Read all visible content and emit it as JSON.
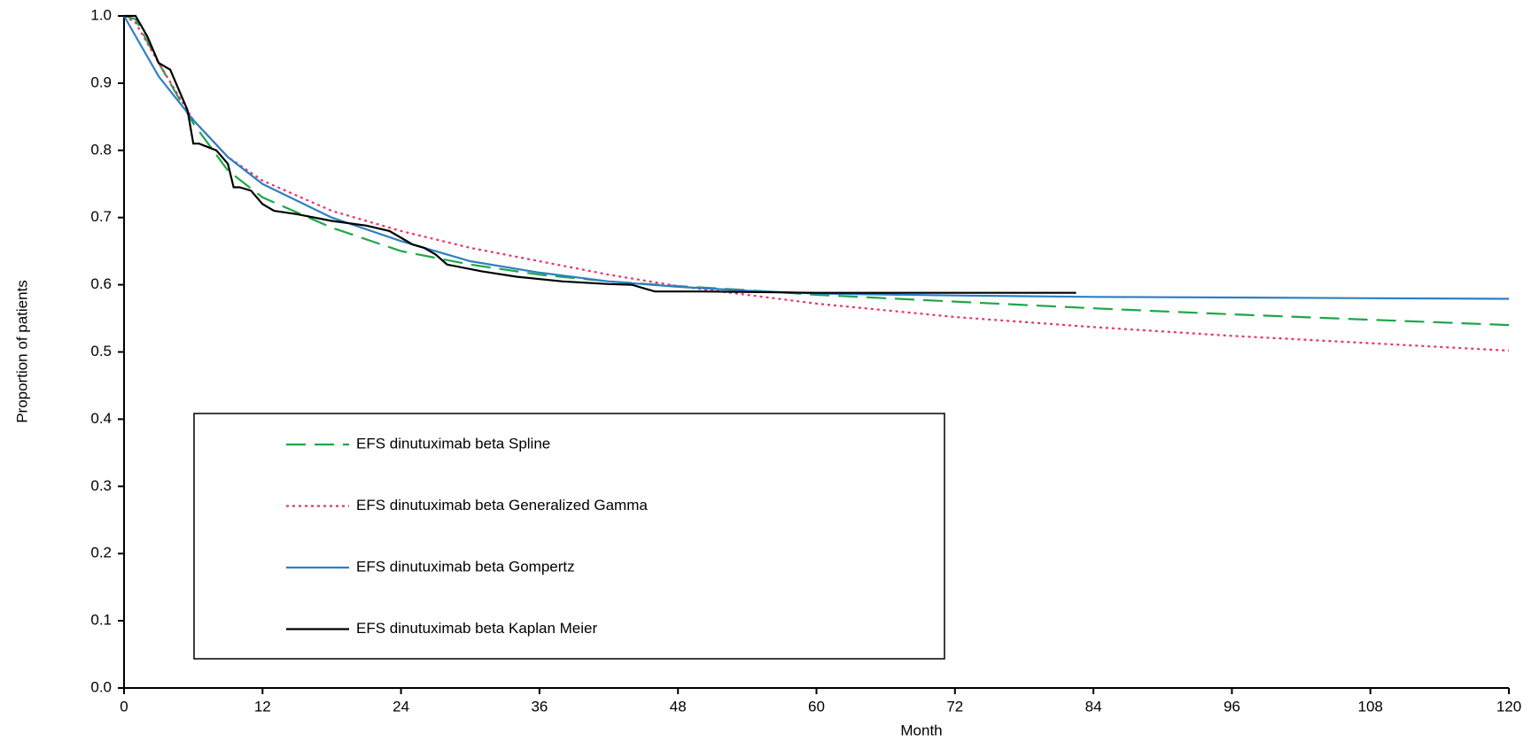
{
  "chart_data": {
    "type": "line",
    "x_label": "Month",
    "y_label": "Proportion of patients",
    "xlim": [
      0,
      120
    ],
    "xticks": [
      0,
      12,
      24,
      36,
      48,
      60,
      72,
      84,
      96,
      108,
      120
    ],
    "ylim": [
      0,
      1
    ],
    "yticks": [
      {
        "value": 0,
        "label": "0.0"
      },
      0.1,
      0.2,
      0.3,
      0.4,
      0.5,
      0.6,
      0.7,
      0.8,
      0.9,
      {
        "value": 1,
        "label": "1.0"
      }
    ],
    "legend": "lower-left",
    "series": [
      {
        "name": "EFS dinutuximab beta Spline",
        "color": "#1fa64a",
        "style": "dashed",
        "x": [
          0,
          1,
          3,
          6,
          9,
          12,
          18,
          24,
          30,
          36,
          42,
          48,
          54,
          60,
          72,
          84,
          96,
          108,
          120
        ],
        "values": [
          1.0,
          0.995,
          0.93,
          0.84,
          0.77,
          0.73,
          0.685,
          0.65,
          0.63,
          0.615,
          0.605,
          0.598,
          0.592,
          0.585,
          0.575,
          0.565,
          0.556,
          0.548,
          0.54
        ]
      },
      {
        "name": "EFS dinutuximab beta Generalized Gamma",
        "color": "#e8336b",
        "style": "dotted",
        "x": [
          0,
          1,
          3,
          6,
          9,
          12,
          18,
          24,
          30,
          36,
          42,
          48,
          54,
          60,
          72,
          84,
          96,
          108,
          120
        ],
        "values": [
          1.0,
          0.99,
          0.93,
          0.845,
          0.79,
          0.755,
          0.71,
          0.68,
          0.655,
          0.635,
          0.615,
          0.598,
          0.585,
          0.572,
          0.552,
          0.537,
          0.524,
          0.513,
          0.502
        ]
      },
      {
        "name": "EFS dinutuximab beta Gompertz",
        "color": "#2f7fc1",
        "style": "solid",
        "x": [
          0,
          3,
          6,
          9,
          12,
          18,
          24,
          30,
          36,
          42,
          48,
          54,
          60,
          72,
          84,
          96,
          108,
          120
        ],
        "values": [
          1.0,
          0.91,
          0.845,
          0.79,
          0.75,
          0.7,
          0.665,
          0.635,
          0.618,
          0.605,
          0.597,
          0.591,
          0.587,
          0.584,
          0.582,
          0.581,
          0.58,
          0.579
        ]
      },
      {
        "name": "EFS dinutuximab beta Kaplan Meier",
        "color": "#000000",
        "style": "solid",
        "x": [
          0,
          1,
          2,
          3,
          4,
          5,
          5.5,
          6,
          6.5,
          8,
          9,
          9.5,
          10,
          11,
          12,
          13,
          15,
          18,
          21,
          23,
          24,
          25,
          26,
          27,
          28,
          31,
          34,
          38,
          42,
          44,
          45,
          46,
          50,
          60,
          70,
          82.5
        ],
        "values": [
          1,
          1,
          0.97,
          0.93,
          0.92,
          0.88,
          0.86,
          0.81,
          0.81,
          0.8,
          0.78,
          0.745,
          0.745,
          0.74,
          0.72,
          0.71,
          0.705,
          0.695,
          0.688,
          0.68,
          0.67,
          0.66,
          0.655,
          0.645,
          0.63,
          0.62,
          0.612,
          0.605,
          0.601,
          0.6,
          0.595,
          0.59,
          0.59,
          0.588,
          0.588,
          0.588
        ]
      }
    ]
  }
}
